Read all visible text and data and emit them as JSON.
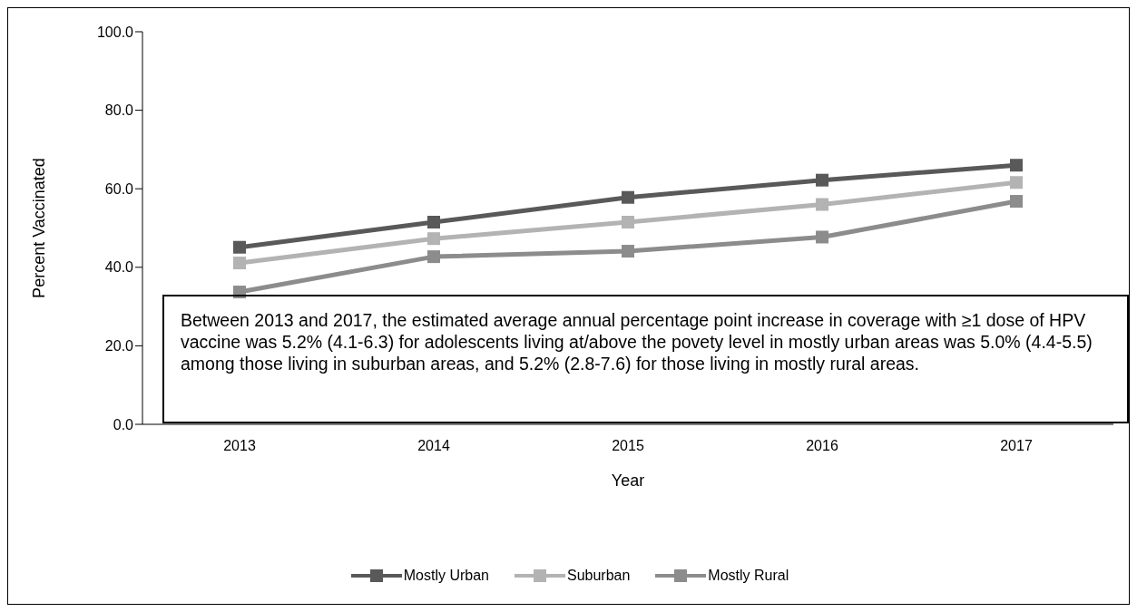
{
  "chart_data": {
    "type": "line",
    "categories": [
      "2013",
      "2014",
      "2015",
      "2016",
      "2017"
    ],
    "series": [
      {
        "name": "Mostly Urban",
        "color": "#595959",
        "values": [
          45.1,
          51.5,
          57.8,
          62.2,
          66.0
        ]
      },
      {
        "name": "Suburban",
        "color": "#b3b3b3",
        "values": [
          41.1,
          47.3,
          51.5,
          56.0,
          61.6
        ]
      },
      {
        "name": "Mostly Rural",
        "color": "#8c8c8c",
        "values": [
          33.7,
          42.7,
          44.1,
          47.7,
          56.8
        ]
      }
    ],
    "xlabel": "Year",
    "ylabel": "Percent Vaccinated",
    "ylim": [
      0,
      100
    ],
    "yticks": [
      {
        "value": 0,
        "label": "0.0"
      },
      {
        "value": 20,
        "label": "20.0"
      },
      {
        "value": 40,
        "label": "40.0"
      },
      {
        "value": 60,
        "label": "60.0"
      },
      {
        "value": 80,
        "label": "80.0"
      },
      {
        "value": 100,
        "label": "100.0"
      }
    ],
    "annotations": [
      "Between 2013 and 2017, the estimated average annual percentage point increase in coverage with ≥1 dose of  HPV vaccine was 5.2% (4.1-6.3) for adolescents living at/above the povety level in mostly urban areas was 5.0% (4.4-5.5) among those living in suburban areas, and 5.2% (2.8-7.6) for those living in mostly rural areas."
    ],
    "grid": false,
    "legend": "bottom",
    "marker": "square",
    "line_style": "solid"
  }
}
